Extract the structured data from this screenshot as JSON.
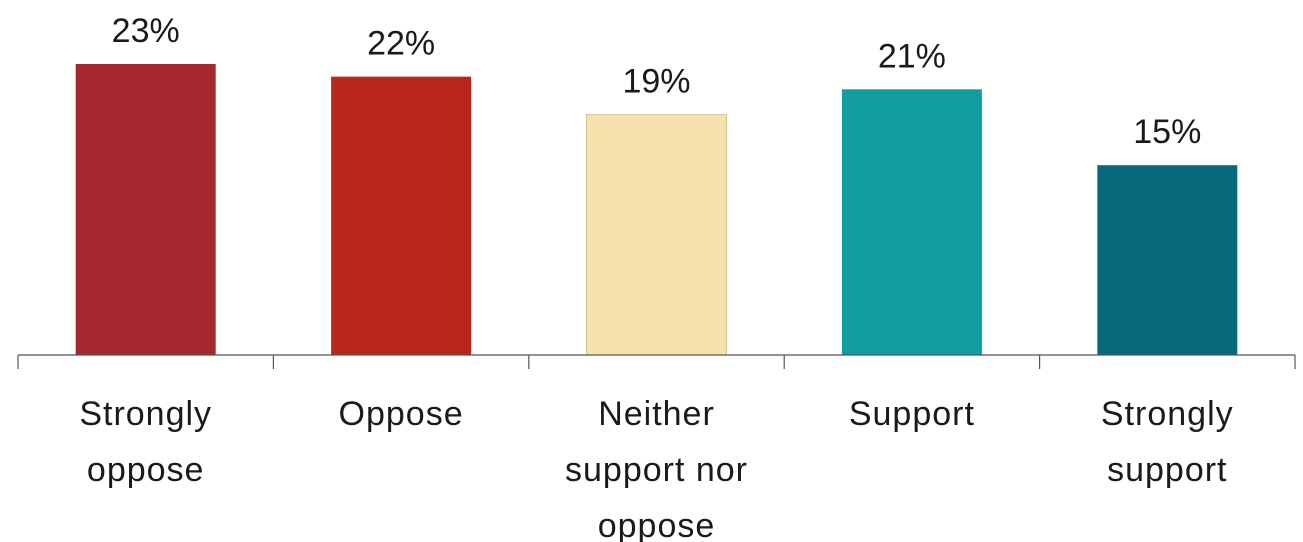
{
  "chart_data": {
    "type": "bar",
    "categories": [
      [
        "Strongly",
        "oppose"
      ],
      [
        "Oppose"
      ],
      [
        "Neither",
        "support nor",
        "oppose"
      ],
      [
        "Support"
      ],
      [
        "Strongly",
        "support"
      ]
    ],
    "values": [
      23,
      22,
      19,
      21,
      15
    ],
    "value_labels": [
      "23%",
      "22%",
      "19%",
      "21%",
      "15%"
    ],
    "colors": [
      "#A4282E",
      "#B9261B",
      "#F5E2AF",
      "#109EA2",
      "#076A7C"
    ],
    "ylim": [
      0,
      23
    ],
    "grid": false,
    "legend": "none"
  }
}
